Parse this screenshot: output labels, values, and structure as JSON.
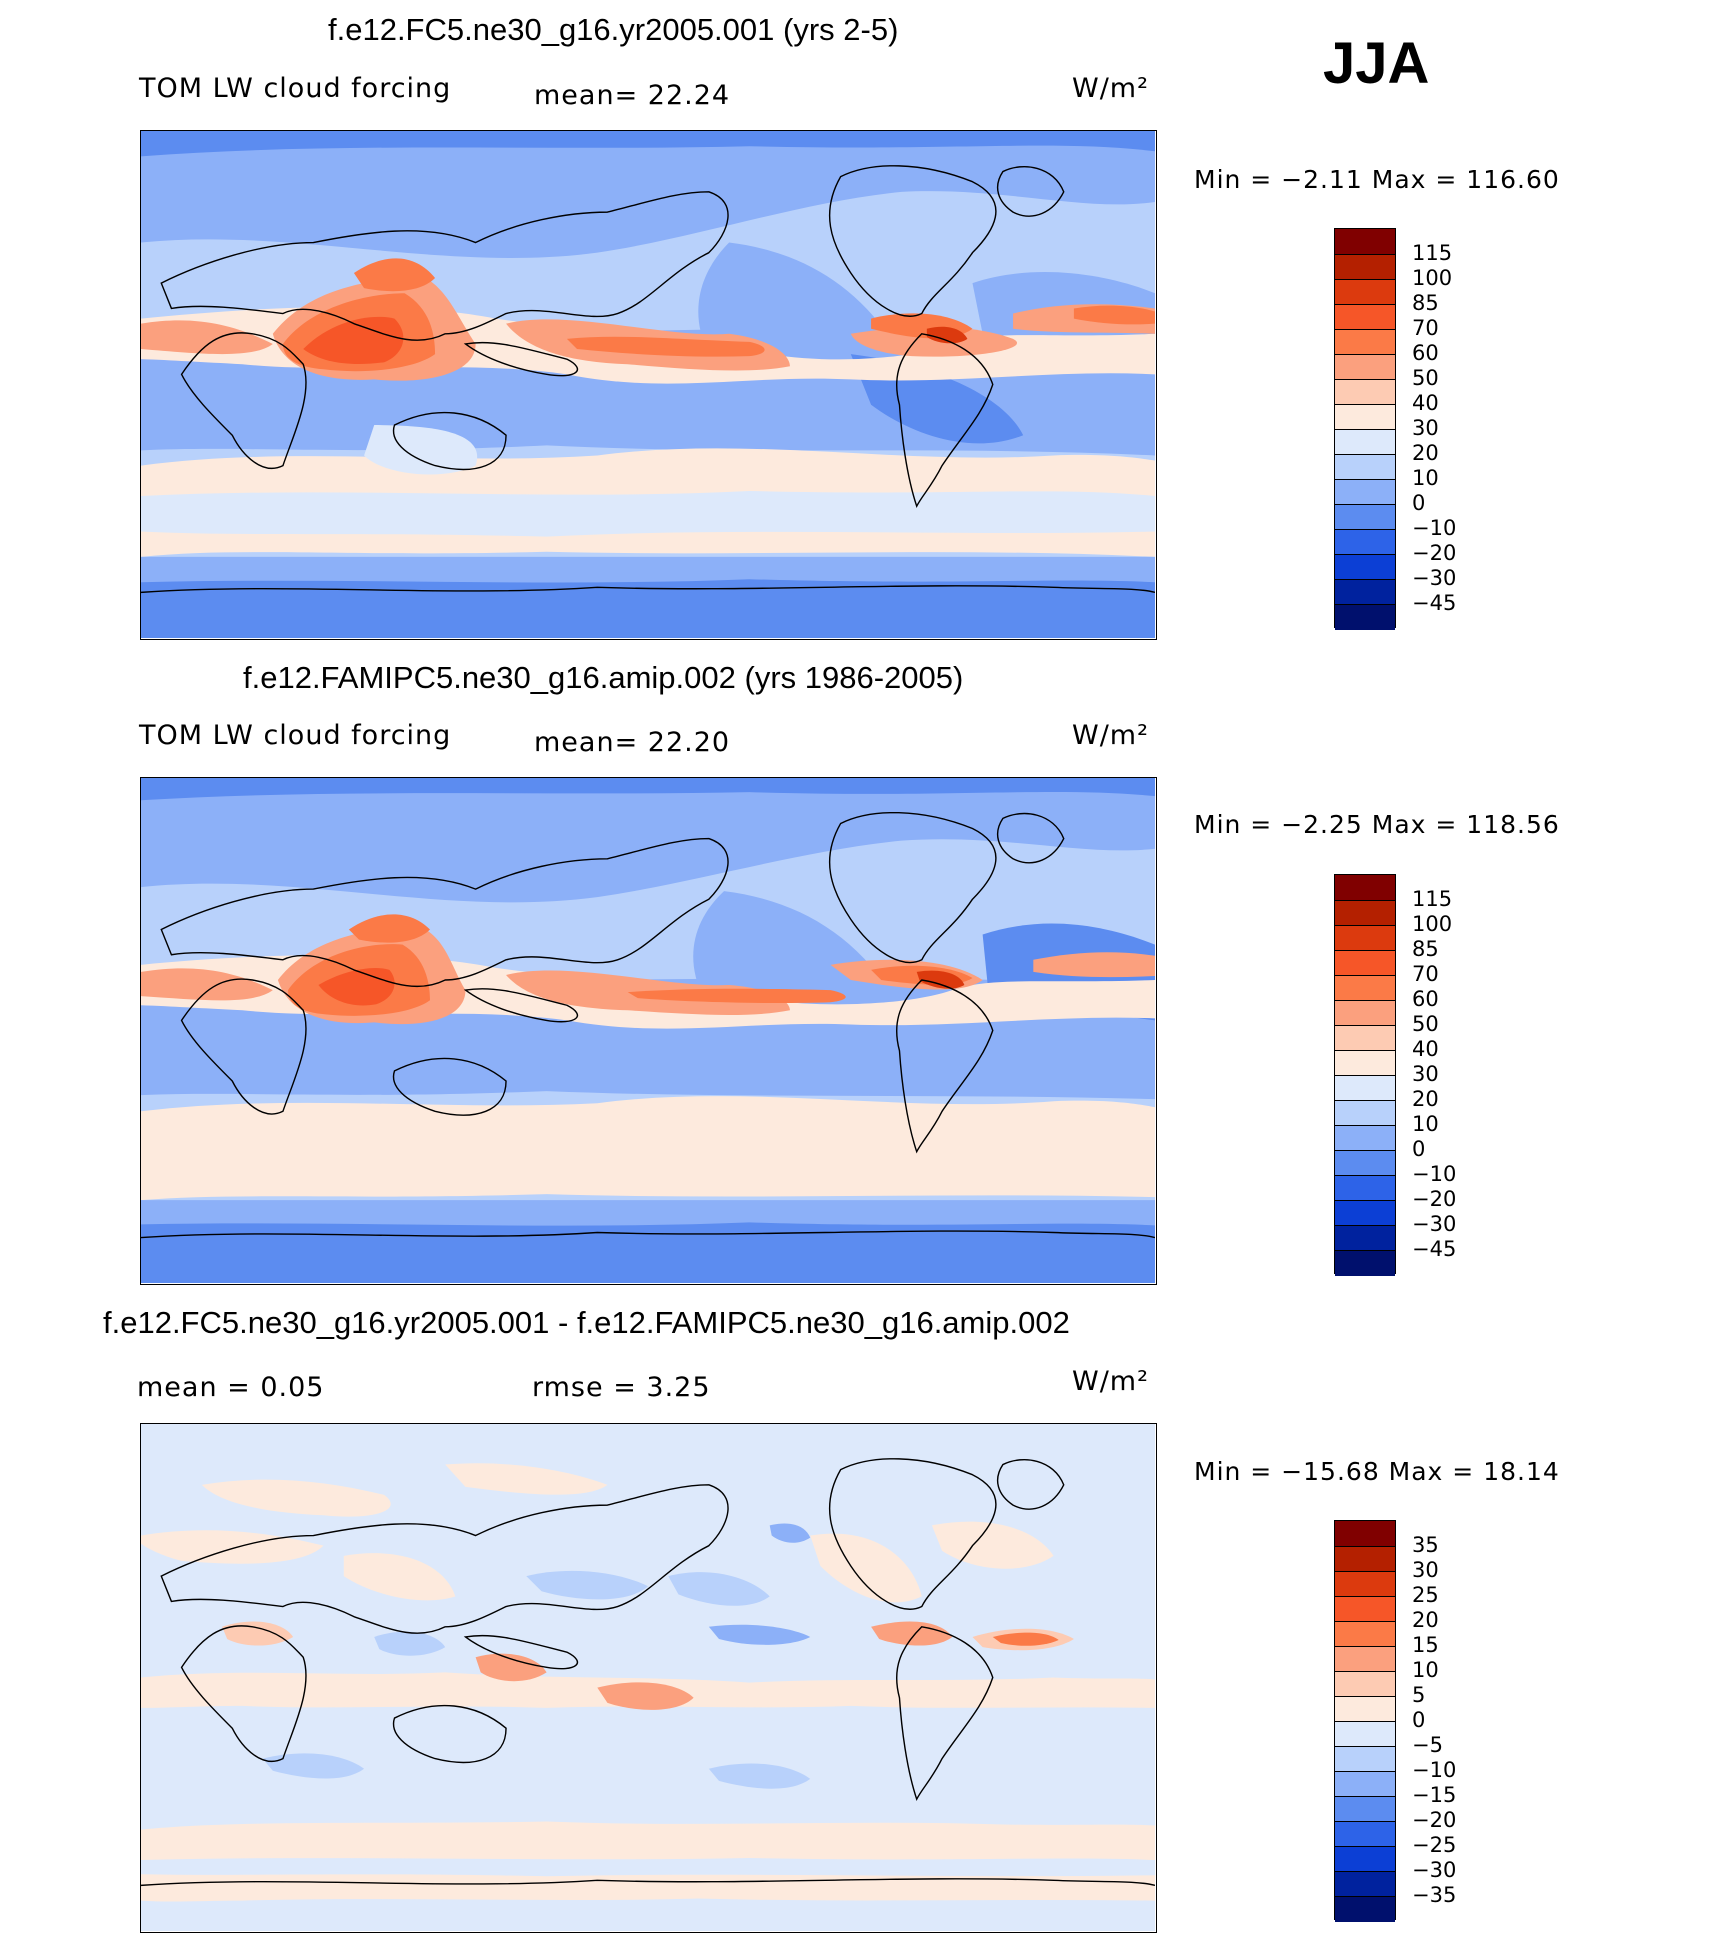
{
  "season": "JJA",
  "panels": [
    {
      "title": "f.e12.FC5.ne30_g16.yr2005.001 (yrs 2-5)",
      "left_label": "TOM LW cloud forcing",
      "mid_label": "mean=   22.24",
      "units": "W/m²",
      "min_max": "Min =   −2.11 Max = 116.60",
      "levels": [
        "115",
        "100",
        "85",
        "70",
        "60",
        "50",
        "40",
        "30",
        "20",
        "10",
        "0",
        "−10",
        "−20",
        "−30",
        "−45"
      ],
      "colors": [
        "#800000",
        "#b42000",
        "#dc3a0e",
        "#f65628",
        "#fb7a47",
        "#fba07e",
        "#fdcbb3",
        "#fdeadd",
        "#dde9fb",
        "#b8d1fb",
        "#8cb0f8",
        "#5c8cf0",
        "#2d63e8",
        "#0c3fd5",
        "#00229e",
        "#00106d"
      ]
    },
    {
      "title": "f.e12.FAMIPC5.ne30_g16.amip.002 (yrs 1986-2005)",
      "left_label": "TOM LW cloud forcing",
      "mid_label": "mean=   22.20",
      "units": "W/m²",
      "min_max": "Min =   −2.25 Max = 118.56",
      "levels": [
        "115",
        "100",
        "85",
        "70",
        "60",
        "50",
        "40",
        "30",
        "20",
        "10",
        "0",
        "−10",
        "−20",
        "−30",
        "−45"
      ],
      "colors": [
        "#800000",
        "#b42000",
        "#dc3a0e",
        "#f65628",
        "#fb7a47",
        "#fba07e",
        "#fdcbb3",
        "#fdeadd",
        "#dde9fb",
        "#b8d1fb",
        "#8cb0f8",
        "#5c8cf0",
        "#2d63e8",
        "#0c3fd5",
        "#00229e",
        "#00106d"
      ]
    },
    {
      "title": "f.e12.FC5.ne30_g16.yr2005.001 - f.e12.FAMIPC5.ne30_g16.amip.002",
      "left_label": "mean =     0.05",
      "mid_label": "rmse =     3.25",
      "units": "W/m²",
      "min_max": "Min = −15.68 Max =   18.14",
      "levels": [
        "35",
        "30",
        "25",
        "20",
        "15",
        "10",
        "5",
        "0",
        "−5",
        "−10",
        "−15",
        "−20",
        "−25",
        "−30",
        "−35"
      ],
      "colors": [
        "#800000",
        "#b42000",
        "#dc3a0e",
        "#f65628",
        "#fb7a47",
        "#fba07e",
        "#fdcbb3",
        "#fdeadd",
        "#dde9fb",
        "#b8d1fb",
        "#8cb0f8",
        "#5c8cf0",
        "#2d63e8",
        "#0c3fd5",
        "#00229e",
        "#00106d"
      ]
    }
  ],
  "chart_data": [
    {
      "type": "heatmap",
      "title": "f.e12.FC5.ne30_g16.yr2005.001 (yrs 2-5)",
      "variable": "TOM LW cloud forcing",
      "season": "JJA",
      "units": "W/m2",
      "mean": 22.24,
      "min": -2.11,
      "max": 116.6,
      "contour_levels": [
        -45,
        -30,
        -20,
        -10,
        0,
        10,
        20,
        30,
        40,
        50,
        60,
        70,
        85,
        100,
        115
      ],
      "xlim": [
        0,
        360
      ],
      "ylim": [
        -90,
        90
      ]
    },
    {
      "type": "heatmap",
      "title": "f.e12.FAMIPC5.ne30_g16.amip.002 (yrs 1986-2005)",
      "variable": "TOM LW cloud forcing",
      "season": "JJA",
      "units": "W/m2",
      "mean": 22.2,
      "min": -2.25,
      "max": 118.56,
      "contour_levels": [
        -45,
        -30,
        -20,
        -10,
        0,
        10,
        20,
        30,
        40,
        50,
        60,
        70,
        85,
        100,
        115
      ],
      "xlim": [
        0,
        360
      ],
      "ylim": [
        -90,
        90
      ]
    },
    {
      "type": "heatmap",
      "title": "f.e12.FC5.ne30_g16.yr2005.001 - f.e12.FAMIPC5.ne30_g16.amip.002",
      "variable": "difference",
      "season": "JJA",
      "units": "W/m2",
      "mean": 0.05,
      "rmse": 3.25,
      "min": -15.68,
      "max": 18.14,
      "contour_levels": [
        -35,
        -30,
        -25,
        -20,
        -15,
        -10,
        -5,
        0,
        5,
        10,
        15,
        20,
        25,
        30,
        35
      ],
      "xlim": [
        0,
        360
      ],
      "ylim": [
        -90,
        90
      ]
    }
  ]
}
